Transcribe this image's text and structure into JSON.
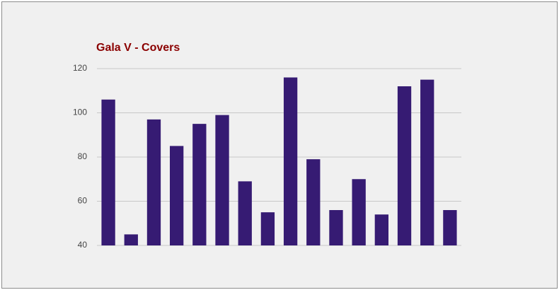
{
  "chart_data": {
    "type": "bar",
    "title": "Gala V - Covers",
    "categories": [
      null,
      null,
      null,
      null,
      null,
      null,
      null,
      null,
      null,
      null,
      null,
      null,
      null,
      null,
      null,
      null
    ],
    "values": [
      106,
      45,
      97,
      85,
      95,
      99,
      69,
      55,
      116,
      79,
      56,
      70,
      54,
      112,
      115,
      56
    ],
    "color": "#361b73",
    "ylim": [
      40,
      120
    ],
    "yticks": [
      40,
      60,
      80,
      100,
      120
    ],
    "grid": true
  }
}
